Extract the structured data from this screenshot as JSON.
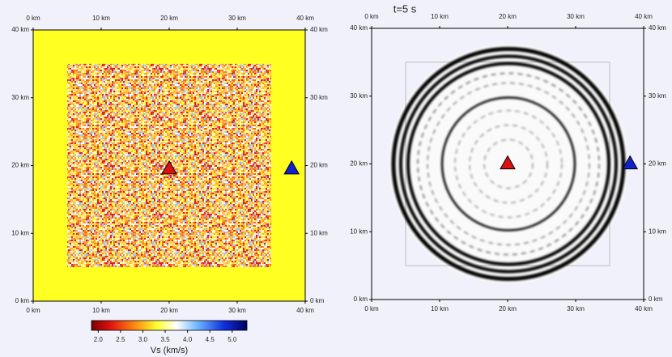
{
  "chart_data": [
    {
      "type": "map",
      "xlim": [
        0,
        40
      ],
      "ylim": [
        0,
        40
      ],
      "xticks": [
        {
          "value": 0,
          "label": "0 km"
        },
        {
          "value": 10,
          "label": "10 km"
        },
        {
          "value": 20,
          "label": "20 km"
        },
        {
          "value": 30,
          "label": "30 km"
        },
        {
          "value": 40,
          "label": "40 km"
        }
      ],
      "yticks": [
        {
          "value": 0,
          "label": "0 km"
        },
        {
          "value": 10,
          "label": "10 km"
        },
        {
          "value": 20,
          "label": "20 km"
        },
        {
          "value": 30,
          "label": "30 km"
        },
        {
          "value": 40,
          "label": "40 km"
        }
      ],
      "markers": [
        {
          "x": 20,
          "y": 19.6,
          "color": "#dd1111"
        },
        {
          "x": 38,
          "y": 19.6,
          "color": "#1122cc"
        }
      ],
      "colorbar": {
        "label": "Vs (km/s)",
        "lim": [
          1.85,
          5.33
        ],
        "ticks": [
          {
            "value": 2,
            "label": "2.0"
          },
          2.5,
          {
            "value": 3,
            "label": "3.0"
          },
          3.5,
          {
            "value": 4,
            "label": "4.0"
          },
          4.5,
          {
            "value": 5,
            "label": "5.0"
          }
        ]
      }
    },
    {
      "type": "map",
      "title": "t=5 s",
      "xlim": [
        0,
        40
      ],
      "ylim": [
        0,
        40
      ],
      "xticks": [
        {
          "value": 0,
          "label": "0 km"
        },
        {
          "value": 10,
          "label": "10 km"
        },
        {
          "value": 20,
          "label": "20 km"
        },
        {
          "value": 30,
          "label": "30 km"
        },
        {
          "value": 40,
          "label": "40 km"
        }
      ],
      "yticks": [
        {
          "value": 0,
          "label": "0 km"
        },
        {
          "value": 10,
          "label": "10 km"
        },
        {
          "value": 20,
          "label": "20 km"
        },
        {
          "value": 30,
          "label": "30 km"
        },
        {
          "value": 40,
          "label": "40 km"
        }
      ],
      "markers": [
        {
          "x": 20,
          "y": 20.1,
          "color": "#dd1111"
        },
        {
          "x": 38,
          "y": 20.1,
          "color": "#1122cc"
        }
      ]
    }
  ]
}
